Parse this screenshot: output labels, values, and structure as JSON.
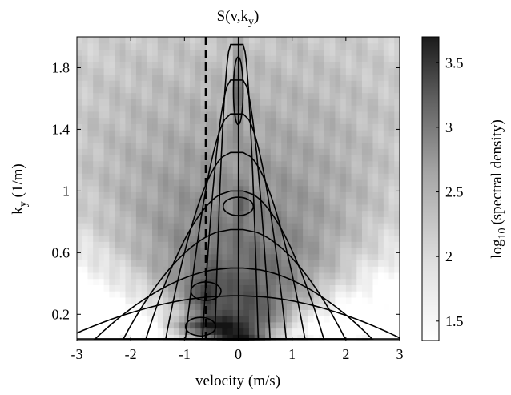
{
  "chart_data": {
    "type": "heatmap",
    "title_main": "S(v,k",
    "title_sub": "y",
    "title_tail": ")",
    "xlabel": "velocity (m/s)",
    "ylabel_main": "k",
    "ylabel_sub": "y",
    "ylabel_tail": " (1/m)",
    "xlim": [
      -3,
      3
    ],
    "ylim": [
      0.03,
      2.0
    ],
    "xticks": [
      -3,
      -2,
      -1,
      0,
      1,
      2,
      3
    ],
    "yticks": [
      0.2,
      0.6,
      1,
      1.4,
      1.8
    ],
    "colorbar": {
      "label_main": "log",
      "label_sub": "10",
      "label_tail": "(spectral density)",
      "range": [
        1.35,
        3.7
      ],
      "ticks": [
        1.5,
        2,
        2.5,
        3,
        3.5
      ],
      "colormap": "gray (white = low, black = high)"
    },
    "reference_lines": [
      {
        "style": "dashed",
        "x": -0.6
      },
      {
        "style": "solid",
        "x": 0
      }
    ],
    "spectrum_peaks": [
      {
        "x": -0.7,
        "y": 0.12,
        "value": 3.6
      },
      {
        "x": 0.0,
        "y": 1.65,
        "value": 3.5
      },
      {
        "x": -0.6,
        "y": 0.35,
        "value": 3.1
      },
      {
        "x": 0.0,
        "y": 0.9,
        "value": 2.6
      }
    ]
  }
}
